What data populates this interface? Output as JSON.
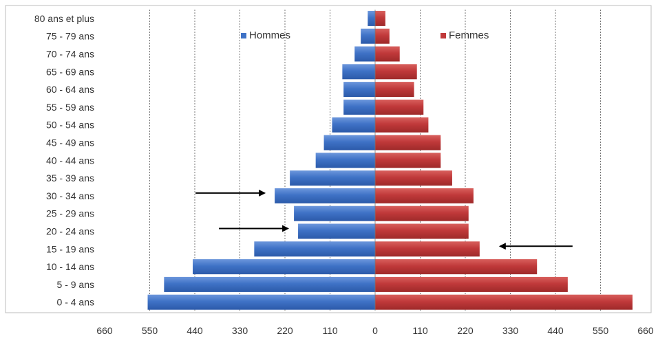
{
  "chart_data": {
    "type": "bar",
    "orientation": "horizontal",
    "layout": "population-pyramid",
    "title": "",
    "xlabel": "",
    "ylabel": "",
    "categories": [
      "80 ans et plus",
      "75 - 79 ans",
      "70 - 74 ans",
      "65 - 69 ans",
      "60 - 64 ans",
      "55 - 59 ans",
      "50 - 54 ans",
      "45 - 49 ans",
      "40 - 44 ans",
      "35 - 39 ans",
      "30 - 34 ans",
      "25 - 29 ans",
      "20 - 24 ans",
      "15 - 19 ans",
      "10 - 14 ans",
      "5 - 9 ans",
      "0 - 4 ans"
    ],
    "series": [
      {
        "name": "Hommes",
        "side": "left",
        "color": "#3f72c6",
        "values": [
          18,
          35,
          50,
          80,
          77,
          77,
          105,
          125,
          145,
          208,
          245,
          198,
          188,
          295,
          445,
          515,
          555
        ]
      },
      {
        "name": "Femmes",
        "side": "right",
        "color": "#c0393a",
        "values": [
          25,
          35,
          60,
          102,
          95,
          118,
          130,
          160,
          160,
          188,
          240,
          228,
          228,
          255,
          395,
          470,
          628
        ]
      }
    ],
    "xlim": [
      -660,
      660
    ],
    "x_ticks": [
      -660,
      -550,
      -440,
      -330,
      -220,
      -110,
      0,
      110,
      220,
      330,
      440,
      550,
      660
    ],
    "x_tick_labels": [
      "660",
      "550",
      "440",
      "330",
      "220",
      "110",
      "0",
      "110",
      "220",
      "330",
      "440",
      "550",
      "660"
    ],
    "grid": "vertical-dashed",
    "legend": [
      {
        "label": "Hommes",
        "color": "#3f72c6",
        "position": "top-left"
      },
      {
        "label": "Femmes",
        "color": "#c0393a",
        "position": "top-right"
      }
    ],
    "annotations": [
      {
        "type": "arrow",
        "direction": "right",
        "category": "30 - 34 ans",
        "side": "left"
      },
      {
        "type": "arrow",
        "direction": "right",
        "category": "20 - 24 ans",
        "side": "left"
      },
      {
        "type": "arrow",
        "direction": "left",
        "category": "15 - 19 ans",
        "side": "right"
      }
    ]
  }
}
